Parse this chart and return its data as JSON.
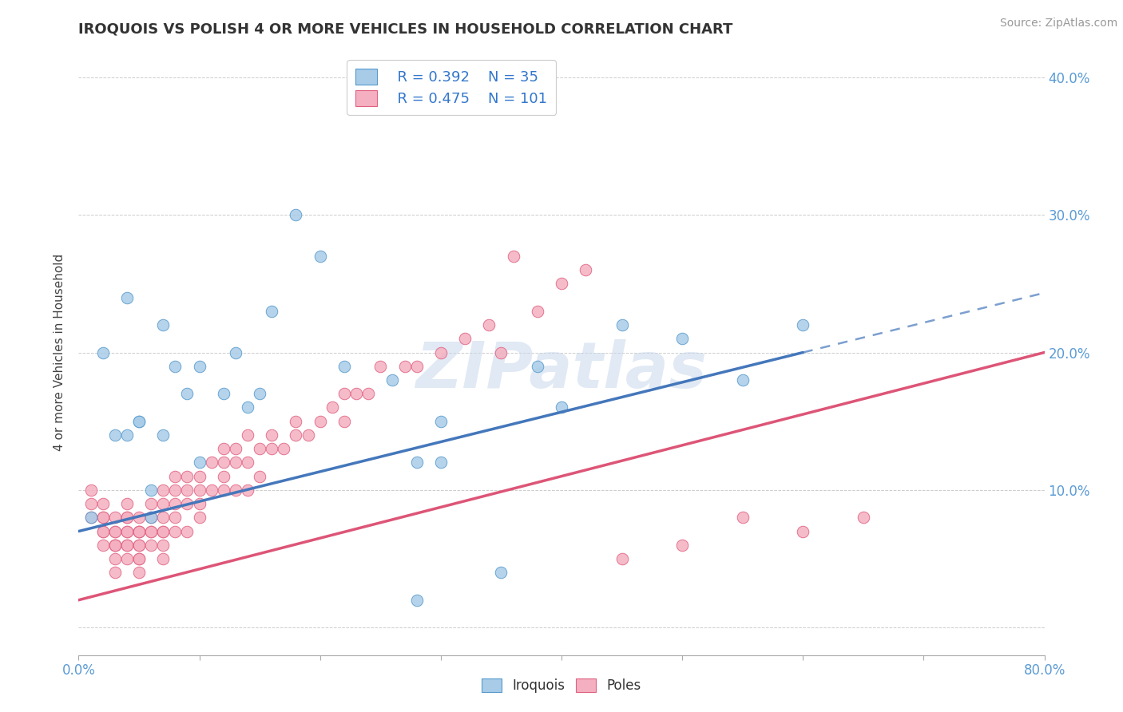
{
  "title": "IROQUOIS VS POLISH 4 OR MORE VEHICLES IN HOUSEHOLD CORRELATION CHART",
  "source_text": "Source: ZipAtlas.com",
  "ylabel": "4 or more Vehicles in Household",
  "xlim": [
    0.0,
    0.8
  ],
  "ylim": [
    -0.02,
    0.42
  ],
  "grid_color": "#cccccc",
  "background_color": "#ffffff",
  "iroquois_color": "#a8cce8",
  "poles_color": "#f4b0c0",
  "iroquois_edge_color": "#5599cc",
  "poles_edge_color": "#e06080",
  "iroquois_line_color": "#4477bb",
  "poles_line_color": "#dd5577",
  "legend_r_iroquois": "R = 0.392",
  "legend_n_iroquois": "N = 35",
  "legend_r_poles": "R = 0.475",
  "legend_n_poles": "N = 101",
  "iroquois_trend": [
    0.07,
    0.2
  ],
  "poles_trend": [
    0.02,
    0.2
  ],
  "iroquois_x": [
    0.01,
    0.02,
    0.03,
    0.04,
    0.04,
    0.05,
    0.05,
    0.06,
    0.06,
    0.07,
    0.07,
    0.08,
    0.09,
    0.1,
    0.1,
    0.12,
    0.13,
    0.14,
    0.15,
    0.16,
    0.18,
    0.2,
    0.22,
    0.26,
    0.28,
    0.3,
    0.3,
    0.35,
    0.38,
    0.4,
    0.45,
    0.5,
    0.55,
    0.6,
    0.28
  ],
  "iroquois_y": [
    0.08,
    0.2,
    0.14,
    0.14,
    0.24,
    0.15,
    0.15,
    0.1,
    0.08,
    0.14,
    0.22,
    0.19,
    0.17,
    0.19,
    0.12,
    0.17,
    0.2,
    0.16,
    0.17,
    0.23,
    0.3,
    0.27,
    0.19,
    0.18,
    0.02,
    0.12,
    0.15,
    0.04,
    0.19,
    0.16,
    0.22,
    0.21,
    0.18,
    0.22,
    0.12
  ],
  "poles_x": [
    0.01,
    0.01,
    0.01,
    0.02,
    0.02,
    0.02,
    0.02,
    0.02,
    0.02,
    0.03,
    0.03,
    0.03,
    0.03,
    0.03,
    0.03,
    0.03,
    0.03,
    0.04,
    0.04,
    0.04,
    0.04,
    0.04,
    0.04,
    0.04,
    0.04,
    0.05,
    0.05,
    0.05,
    0.05,
    0.05,
    0.05,
    0.05,
    0.05,
    0.05,
    0.06,
    0.06,
    0.06,
    0.06,
    0.06,
    0.07,
    0.07,
    0.07,
    0.07,
    0.07,
    0.07,
    0.07,
    0.08,
    0.08,
    0.08,
    0.08,
    0.08,
    0.09,
    0.09,
    0.09,
    0.09,
    0.1,
    0.1,
    0.1,
    0.1,
    0.11,
    0.11,
    0.12,
    0.12,
    0.12,
    0.12,
    0.13,
    0.13,
    0.13,
    0.14,
    0.14,
    0.14,
    0.15,
    0.15,
    0.16,
    0.16,
    0.17,
    0.18,
    0.18,
    0.19,
    0.2,
    0.21,
    0.22,
    0.22,
    0.23,
    0.24,
    0.25,
    0.27,
    0.28,
    0.3,
    0.32,
    0.34,
    0.35,
    0.36,
    0.38,
    0.4,
    0.42,
    0.45,
    0.5,
    0.55,
    0.6,
    0.65
  ],
  "poles_y": [
    0.08,
    0.09,
    0.1,
    0.06,
    0.07,
    0.07,
    0.08,
    0.08,
    0.09,
    0.04,
    0.05,
    0.06,
    0.06,
    0.06,
    0.07,
    0.07,
    0.08,
    0.05,
    0.06,
    0.06,
    0.07,
    0.07,
    0.08,
    0.08,
    0.09,
    0.04,
    0.05,
    0.05,
    0.06,
    0.06,
    0.07,
    0.07,
    0.07,
    0.08,
    0.06,
    0.07,
    0.07,
    0.08,
    0.09,
    0.05,
    0.06,
    0.07,
    0.07,
    0.08,
    0.09,
    0.1,
    0.07,
    0.08,
    0.09,
    0.1,
    0.11,
    0.07,
    0.09,
    0.1,
    0.11,
    0.08,
    0.09,
    0.1,
    0.11,
    0.1,
    0.12,
    0.1,
    0.11,
    0.12,
    0.13,
    0.1,
    0.12,
    0.13,
    0.1,
    0.12,
    0.14,
    0.11,
    0.13,
    0.13,
    0.14,
    0.13,
    0.14,
    0.15,
    0.14,
    0.15,
    0.16,
    0.15,
    0.17,
    0.17,
    0.17,
    0.19,
    0.19,
    0.19,
    0.2,
    0.21,
    0.22,
    0.2,
    0.27,
    0.23,
    0.25,
    0.26,
    0.05,
    0.06,
    0.08,
    0.07,
    0.08
  ]
}
